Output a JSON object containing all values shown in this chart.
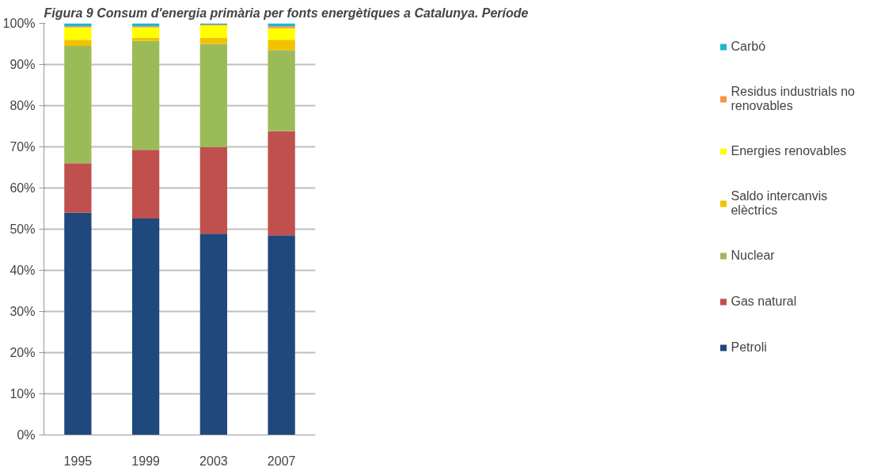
{
  "chart_data": {
    "type": "bar",
    "stacked": true,
    "title": "Figura 9 Consum d'energia primària per fonts energètiques a Catalunya. Període",
    "categories": [
      "1995",
      "1999",
      "2003",
      "2007"
    ],
    "series": [
      {
        "name": "Petroli",
        "color": "#1f497d",
        "values": [
          54,
          52.6,
          48.9,
          48.5
        ]
      },
      {
        "name": "Gas natural",
        "color": "#c0504d",
        "values": [
          12,
          16.7,
          21,
          25.3
        ]
      },
      {
        "name": "Nuclear",
        "color": "#9bbb59",
        "values": [
          28.5,
          26.4,
          25.1,
          19.7
        ]
      },
      {
        "name": "Saldo intercanvis elèctrics",
        "color": "#f2c200",
        "values": [
          1.5,
          0.8,
          1.5,
          2.5
        ]
      },
      {
        "name": "Energies renovables",
        "color": "#ffff00",
        "values": [
          3,
          2.5,
          3,
          2.8
        ]
      },
      {
        "name": "Residus industrials no renovables",
        "color": "#f79646",
        "values": [
          0.3,
          0.3,
          0.2,
          0.5
        ]
      },
      {
        "name": "Carbó",
        "color": "#1fb5d5",
        "values": [
          0.7,
          0.7,
          0.3,
          0.7
        ]
      }
    ],
    "ylim": [
      0,
      100
    ],
    "yticks": [
      {
        "value": 0,
        "label": "0%"
      },
      {
        "value": 10,
        "label": "10%"
      },
      {
        "value": 20,
        "label": "20%"
      },
      {
        "value": 30,
        "label": "30%"
      },
      {
        "value": 40,
        "label": "40%"
      },
      {
        "value": 50,
        "label": "50%"
      },
      {
        "value": 60,
        "label": "60%"
      },
      {
        "value": 70,
        "label": "70%"
      },
      {
        "value": 80,
        "label": "80%"
      },
      {
        "value": 90,
        "label": "90%"
      },
      {
        "value": 100,
        "label": "100%"
      }
    ],
    "grid": "y",
    "legend": "right"
  }
}
